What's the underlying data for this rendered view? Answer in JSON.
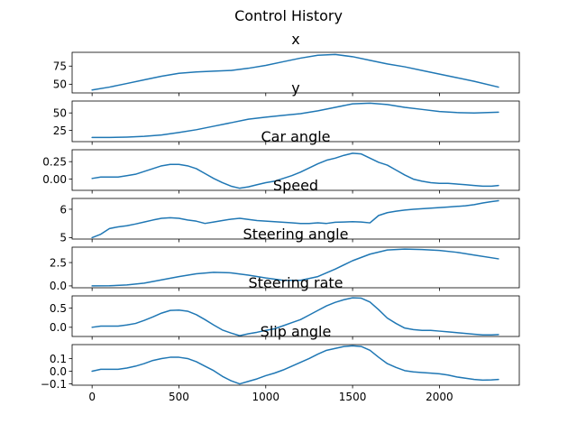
{
  "figure": {
    "title": "Control History"
  },
  "colors": {
    "line": "#1f77b4",
    "axes": "#000000",
    "background": "#ffffff"
  },
  "chart_data": [
    {
      "type": "line",
      "title": "x",
      "xlim": [
        -115,
        2460
      ],
      "ylim": [
        38,
        94
      ],
      "yticks": [
        50,
        75
      ],
      "ytick_labels": [
        "50",
        "75"
      ],
      "xticks": [
        0,
        500,
        1000,
        1500,
        2000
      ],
      "x": [
        0,
        100,
        200,
        300,
        400,
        500,
        600,
        700,
        800,
        900,
        1000,
        1100,
        1200,
        1300,
        1400,
        1500,
        1600,
        1700,
        1800,
        1900,
        2000,
        2100,
        2200,
        2340
      ],
      "y": [
        42,
        46,
        51,
        56,
        61,
        65,
        67,
        68,
        69,
        72,
        76,
        81,
        86,
        90,
        91,
        88,
        83,
        78,
        74,
        69,
        64,
        59,
        54,
        46
      ]
    },
    {
      "type": "line",
      "title": "y",
      "xlim": [
        -115,
        2460
      ],
      "ylim": [
        9,
        67
      ],
      "yticks": [
        25,
        50
      ],
      "ytick_labels": [
        "25",
        "50"
      ],
      "xticks": [
        0,
        500,
        1000,
        1500,
        2000
      ],
      "x": [
        0,
        100,
        200,
        300,
        400,
        500,
        600,
        700,
        800,
        900,
        1000,
        1100,
        1200,
        1300,
        1400,
        1500,
        1600,
        1700,
        1800,
        1900,
        2000,
        2100,
        2200,
        2340
      ],
      "y": [
        15,
        15,
        15.5,
        16.5,
        18.5,
        22,
        26,
        31,
        36,
        41,
        44,
        46.5,
        49,
        53,
        58,
        63,
        64,
        62,
        58,
        55,
        52,
        50.5,
        50,
        51
      ]
    },
    {
      "type": "line",
      "title": "Car angle",
      "xlim": [
        -115,
        2460
      ],
      "ylim": [
        -0.16,
        0.42
      ],
      "yticks": [
        0.0,
        0.25
      ],
      "ytick_labels": [
        "0.00",
        "0.25"
      ],
      "xticks": [
        0,
        500,
        1000,
        1500,
        2000
      ],
      "x": [
        0,
        50,
        100,
        150,
        200,
        250,
        300,
        350,
        400,
        450,
        500,
        550,
        600,
        650,
        700,
        750,
        800,
        850,
        900,
        950,
        1000,
        1050,
        1100,
        1150,
        1200,
        1250,
        1300,
        1350,
        1400,
        1450,
        1500,
        1550,
        1600,
        1650,
        1700,
        1750,
        1800,
        1850,
        1900,
        1950,
        2000,
        2050,
        2100,
        2150,
        2200,
        2250,
        2300,
        2340
      ],
      "y": [
        0.01,
        0.03,
        0.03,
        0.03,
        0.05,
        0.07,
        0.11,
        0.15,
        0.19,
        0.21,
        0.21,
        0.19,
        0.15,
        0.08,
        0.01,
        -0.05,
        -0.1,
        -0.13,
        -0.11,
        -0.08,
        -0.05,
        -0.03,
        0.01,
        0.05,
        0.1,
        0.16,
        0.22,
        0.27,
        0.3,
        0.34,
        0.37,
        0.36,
        0.3,
        0.24,
        0.2,
        0.13,
        0.06,
        0.0,
        -0.03,
        -0.05,
        -0.06,
        -0.06,
        -0.07,
        -0.08,
        -0.09,
        -0.1,
        -0.1,
        -0.09
      ]
    },
    {
      "type": "line",
      "title": "Speed",
      "xlim": [
        -115,
        2460
      ],
      "ylim": [
        4.95,
        6.38
      ],
      "yticks": [
        5,
        6
      ],
      "ytick_labels": [
        "5",
        "6"
      ],
      "xticks": [
        0,
        500,
        1000,
        1500,
        2000
      ],
      "x": [
        0,
        50,
        100,
        150,
        200,
        250,
        300,
        350,
        400,
        450,
        500,
        550,
        600,
        650,
        700,
        750,
        800,
        850,
        900,
        950,
        1000,
        1050,
        1100,
        1150,
        1200,
        1250,
        1300,
        1350,
        1400,
        1450,
        1500,
        1550,
        1600,
        1650,
        1700,
        1750,
        1800,
        1850,
        1900,
        1950,
        2000,
        2050,
        2100,
        2150,
        2200,
        2250,
        2300,
        2340
      ],
      "y": [
        5.0,
        5.12,
        5.32,
        5.38,
        5.42,
        5.48,
        5.55,
        5.62,
        5.68,
        5.7,
        5.68,
        5.62,
        5.58,
        5.5,
        5.55,
        5.6,
        5.65,
        5.68,
        5.64,
        5.6,
        5.58,
        5.56,
        5.54,
        5.52,
        5.5,
        5.5,
        5.52,
        5.5,
        5.54,
        5.55,
        5.56,
        5.55,
        5.52,
        5.78,
        5.88,
        5.93,
        5.97,
        6.0,
        6.02,
        6.04,
        6.06,
        6.08,
        6.1,
        6.12,
        6.16,
        6.22,
        6.27,
        6.3
      ]
    },
    {
      "type": "line",
      "title": "Steering angle",
      "xlim": [
        -115,
        2460
      ],
      "ylim": [
        -0.2,
        4.15
      ],
      "yticks": [
        0.0,
        2.5
      ],
      "ytick_labels": [
        "0.0",
        "2.5"
      ],
      "xticks": [
        0,
        500,
        1000,
        1500,
        2000
      ],
      "x": [
        0,
        100,
        200,
        300,
        400,
        500,
        600,
        700,
        800,
        900,
        1000,
        1100,
        1200,
        1300,
        1400,
        1500,
        1600,
        1700,
        1800,
        1900,
        2000,
        2100,
        2200,
        2340
      ],
      "y": [
        0.0,
        0.02,
        0.1,
        0.3,
        0.65,
        1.0,
        1.3,
        1.45,
        1.4,
        1.15,
        0.85,
        0.6,
        0.6,
        1.0,
        1.8,
        2.7,
        3.4,
        3.85,
        3.95,
        3.9,
        3.8,
        3.6,
        3.3,
        2.9
      ]
    },
    {
      "type": "line",
      "title": "Steering rate",
      "xlim": [
        -115,
        2460
      ],
      "ylim": [
        -0.24,
        0.82
      ],
      "yticks": [
        0.0,
        0.5
      ],
      "ytick_labels": [
        "0.0",
        "0.5"
      ],
      "xticks": [
        0,
        500,
        1000,
        1500,
        2000
      ],
      "x": [
        0,
        50,
        100,
        150,
        200,
        250,
        300,
        350,
        400,
        450,
        500,
        550,
        600,
        650,
        700,
        750,
        800,
        850,
        900,
        950,
        1000,
        1050,
        1100,
        1150,
        1200,
        1250,
        1300,
        1350,
        1400,
        1450,
        1500,
        1550,
        1600,
        1650,
        1700,
        1750,
        1800,
        1850,
        1900,
        1950,
        2000,
        2050,
        2100,
        2150,
        2200,
        2250,
        2300,
        2340
      ],
      "y": [
        0.0,
        0.03,
        0.03,
        0.03,
        0.06,
        0.1,
        0.18,
        0.27,
        0.37,
        0.44,
        0.45,
        0.42,
        0.33,
        0.2,
        0.06,
        -0.07,
        -0.15,
        -0.22,
        -0.17,
        -0.13,
        -0.08,
        -0.04,
        0.04,
        0.12,
        0.2,
        0.32,
        0.44,
        0.56,
        0.65,
        0.72,
        0.77,
        0.76,
        0.66,
        0.46,
        0.24,
        0.1,
        -0.02,
        -0.06,
        -0.08,
        -0.08,
        -0.1,
        -0.12,
        -0.14,
        -0.16,
        -0.18,
        -0.2,
        -0.2,
        -0.19
      ]
    },
    {
      "type": "line",
      "title": "Slip angle",
      "xlim": [
        -115,
        2460
      ],
      "ylim": [
        -0.11,
        0.21
      ],
      "yticks": [
        -0.1,
        0.0,
        0.1
      ],
      "ytick_labels": [
        "−0.1",
        "0.0",
        "0.1"
      ],
      "xticks": [
        0,
        500,
        1000,
        1500,
        2000
      ],
      "xtick_labels": [
        "0",
        "500",
        "1000",
        "1500",
        "2000"
      ],
      "x": [
        0,
        50,
        100,
        150,
        200,
        250,
        300,
        350,
        400,
        450,
        500,
        550,
        600,
        650,
        700,
        750,
        800,
        850,
        900,
        950,
        1000,
        1050,
        1100,
        1150,
        1200,
        1250,
        1300,
        1350,
        1400,
        1450,
        1500,
        1550,
        1600,
        1650,
        1700,
        1750,
        1800,
        1850,
        1900,
        1950,
        2000,
        2050,
        2100,
        2150,
        2200,
        2250,
        2300,
        2340
      ],
      "y": [
        0.0,
        0.015,
        0.015,
        0.015,
        0.025,
        0.04,
        0.06,
        0.085,
        0.1,
        0.11,
        0.11,
        0.1,
        0.075,
        0.04,
        0.005,
        -0.04,
        -0.075,
        -0.1,
        -0.08,
        -0.06,
        -0.035,
        -0.015,
        0.01,
        0.04,
        0.07,
        0.1,
        0.135,
        0.165,
        0.18,
        0.195,
        0.2,
        0.195,
        0.165,
        0.11,
        0.06,
        0.03,
        0.005,
        -0.005,
        -0.01,
        -0.015,
        -0.02,
        -0.03,
        -0.045,
        -0.055,
        -0.065,
        -0.07,
        -0.068,
        -0.065
      ]
    }
  ]
}
